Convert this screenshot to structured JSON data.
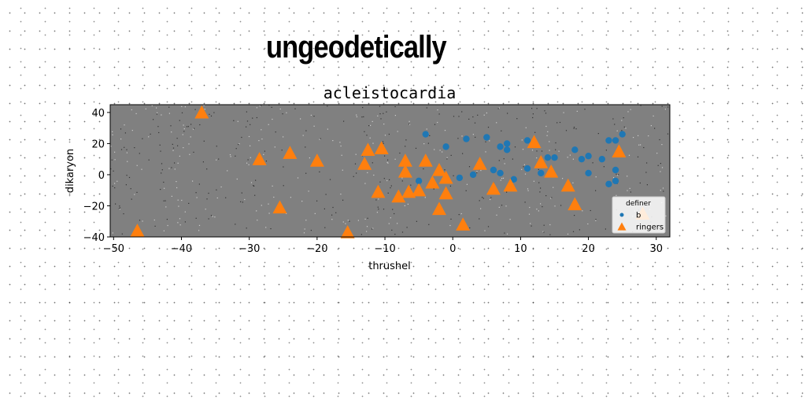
{
  "headline": "ungeodetically",
  "chart_data": {
    "type": "scatter",
    "title": "acleistocardia",
    "xlabel": "thrushel",
    "ylabel": "dikaryon",
    "xlim": [
      -50.5,
      32
    ],
    "ylim": [
      -40,
      45
    ],
    "xticks": [
      -50,
      -40,
      -30,
      -20,
      -10,
      0,
      10,
      20,
      30
    ],
    "yticks": [
      -40,
      -20,
      0,
      20,
      40
    ],
    "grid": false,
    "legend": {
      "title": "definer",
      "placement": "bottom-right"
    },
    "series": [
      {
        "name": "b",
        "marker": "circle",
        "color": "#1f77b4",
        "points": [
          [
            -4,
            26
          ],
          [
            -1,
            18
          ],
          [
            2,
            23
          ],
          [
            5,
            24
          ],
          [
            7,
            18
          ],
          [
            8,
            20
          ],
          [
            8,
            16
          ],
          [
            11,
            22
          ],
          [
            12,
            20
          ],
          [
            14,
            11
          ],
          [
            15,
            11
          ],
          [
            18,
            16
          ],
          [
            19,
            10
          ],
          [
            20,
            12
          ],
          [
            22,
            10
          ],
          [
            23,
            22
          ],
          [
            24,
            22
          ],
          [
            25,
            26
          ],
          [
            -5,
            -4
          ],
          [
            1,
            -2
          ],
          [
            3,
            0
          ],
          [
            6,
            3
          ],
          [
            7,
            1
          ],
          [
            9,
            -3
          ],
          [
            11,
            4
          ],
          [
            13,
            1
          ],
          [
            20,
            1
          ],
          [
            24,
            3
          ],
          [
            23,
            -6
          ],
          [
            24,
            -4
          ]
        ]
      },
      {
        "name": "ringers",
        "marker": "triangle",
        "color": "#ff7f0e",
        "points": [
          [
            -46.5,
            -36
          ],
          [
            -37,
            40
          ],
          [
            -28.5,
            10
          ],
          [
            -25.5,
            -21
          ],
          [
            -24,
            14
          ],
          [
            -20,
            9
          ],
          [
            -15.5,
            -37
          ],
          [
            -13,
            7
          ],
          [
            -12.5,
            16
          ],
          [
            -10.5,
            17
          ],
          [
            -11,
            -11
          ],
          [
            -8,
            -14
          ],
          [
            -7,
            9
          ],
          [
            -7,
            2
          ],
          [
            -6.5,
            -11
          ],
          [
            -5,
            -10
          ],
          [
            -4,
            9
          ],
          [
            -3,
            -5
          ],
          [
            -2,
            3
          ],
          [
            -2,
            -22
          ],
          [
            -1,
            -2
          ],
          [
            -1,
            -12
          ],
          [
            1.5,
            -32
          ],
          [
            4,
            7
          ],
          [
            6,
            -9
          ],
          [
            8.5,
            -7
          ],
          [
            12,
            21
          ],
          [
            13,
            8
          ],
          [
            14.5,
            2
          ],
          [
            17,
            -7
          ],
          [
            18,
            -19
          ],
          [
            24.5,
            15
          ],
          [
            28,
            -25
          ]
        ]
      }
    ]
  }
}
